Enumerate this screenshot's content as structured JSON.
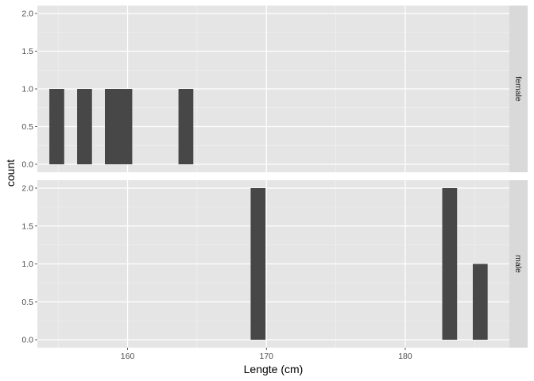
{
  "chart_data": {
    "type": "bar",
    "chart_kind": "faceted histogram",
    "xlabel": "Lengte (cm)",
    "ylabel": "count",
    "xlim": [
      153.5,
      187.5
    ],
    "x_ticks": [
      160,
      170,
      180
    ],
    "x_tick_labels": [
      "160",
      "170",
      "180"
    ],
    "y_ticks": [
      0.0,
      0.5,
      1.0,
      1.5,
      2.0
    ],
    "y_tick_labels": [
      "0.0",
      "0.5",
      "1.0",
      "1.5",
      "2.0"
    ],
    "ylim": [
      0,
      2
    ],
    "grid": true,
    "bin_width": 1.07,
    "bar_color": "#474747",
    "panel_background": "#e5e5e5",
    "strip_background": "#d9d9d9",
    "facets": [
      {
        "label": "female",
        "bins": [
          {
            "x": 154.9,
            "count": 1
          },
          {
            "x": 156.9,
            "count": 1
          },
          {
            "x": 158.9,
            "count": 1
          },
          {
            "x": 159.8,
            "count": 1
          },
          {
            "x": 164.2,
            "count": 1
          }
        ]
      },
      {
        "label": "male",
        "bins": [
          {
            "x": 169.4,
            "count": 2
          },
          {
            "x": 183.2,
            "count": 2
          },
          {
            "x": 185.4,
            "count": 1
          }
        ]
      }
    ]
  }
}
